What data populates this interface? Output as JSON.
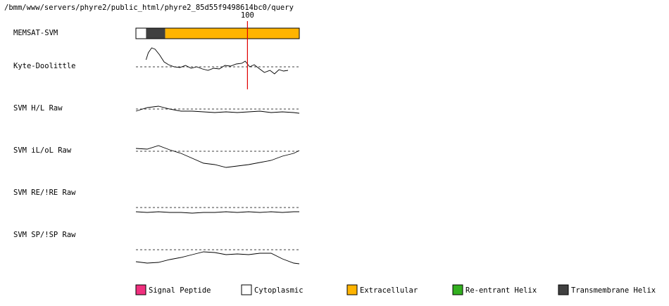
{
  "path": "/bmm/www/servers/phyre2/public_html/phyre2_85d55f9498614bc0/query",
  "marker": 100,
  "xlim": [
    1,
    146
  ],
  "ylim": [
    -3,
    3
  ],
  "segment_track": {
    "label": "MEMSAT-SVM",
    "segments": [
      {
        "start": 1,
        "end": 10,
        "color": "#ffffff"
      },
      {
        "start": 10,
        "end": 27,
        "color": "#404040"
      },
      {
        "start": 27,
        "end": 146,
        "color": "#ffb400"
      }
    ]
  },
  "traces": [
    {
      "label": "Kyte-Doolittle",
      "x": [
        10,
        12,
        15,
        18,
        22,
        26,
        30,
        35,
        40,
        45,
        50,
        55,
        60,
        65,
        70,
        75,
        80,
        85,
        90,
        95,
        98,
        102,
        106,
        110,
        115,
        120,
        124,
        128,
        132,
        136
      ],
      "values": [
        1.0,
        2.0,
        2.7,
        2.5,
        1.7,
        0.7,
        0.3,
        0,
        -0.1,
        0.2,
        -0.2,
        0,
        -0.3,
        -0.5,
        -0.2,
        -0.3,
        0.2,
        0.1,
        0.4,
        0.5,
        0.8,
        0,
        0.3,
        -0.2,
        -0.8,
        -0.5,
        -1.0,
        -0.4,
        -0.6,
        -0.5
      ]
    },
    {
      "label": "SVM H/L Raw",
      "x": [
        1,
        11,
        21,
        31,
        41,
        51,
        61,
        71,
        81,
        91,
        101,
        111,
        121,
        131,
        141,
        146
      ],
      "values": [
        -0.3,
        0.2,
        0.4,
        0,
        -0.3,
        -0.3,
        -0.4,
        -0.5,
        -0.4,
        -0.5,
        -0.4,
        -0.3,
        -0.5,
        -0.4,
        -0.5,
        -0.6
      ]
    },
    {
      "label": "SVM iL/oL Raw",
      "x": [
        1,
        11,
        21,
        31,
        41,
        51,
        61,
        71,
        81,
        91,
        101,
        111,
        121,
        131,
        141,
        146
      ],
      "values": [
        0.4,
        0.3,
        0.8,
        0.2,
        -0.3,
        -1.0,
        -1.7,
        -1.9,
        -2.3,
        -2.1,
        -1.9,
        -1.6,
        -1.3,
        -0.7,
        -0.3,
        0.1
      ]
    },
    {
      "label": "SVM RE/!RE Raw",
      "x": [
        1,
        11,
        21,
        31,
        41,
        51,
        61,
        71,
        81,
        91,
        101,
        111,
        121,
        131,
        141,
        146
      ],
      "values": [
        -0.6,
        -0.7,
        -0.6,
        -0.7,
        -0.7,
        -0.8,
        -0.7,
        -0.7,
        -0.6,
        -0.7,
        -0.6,
        -0.7,
        -0.6,
        -0.7,
        -0.6,
        -0.6
      ]
    },
    {
      "label": "SVM SP/!SP Raw",
      "x": [
        1,
        11,
        21,
        31,
        41,
        51,
        61,
        71,
        81,
        91,
        101,
        111,
        121,
        131,
        141,
        146
      ],
      "values": [
        -1.7,
        -1.9,
        -1.8,
        -1.4,
        -1.1,
        -0.7,
        -0.3,
        -0.4,
        -0.7,
        -0.6,
        -0.7,
        -0.5,
        -0.5,
        -1.3,
        -1.9,
        -2.0
      ]
    }
  ],
  "legend": [
    {
      "name": "Signal Peptide",
      "color": "#f0307e"
    },
    {
      "name": "Cytoplasmic",
      "color": "#ffffff"
    },
    {
      "name": "Extracellular",
      "color": "#ffb400"
    },
    {
      "name": "Re-entrant Helix",
      "color": "#33b020"
    },
    {
      "name": "Transmembrane Helix",
      "color": "#404040"
    }
  ]
}
